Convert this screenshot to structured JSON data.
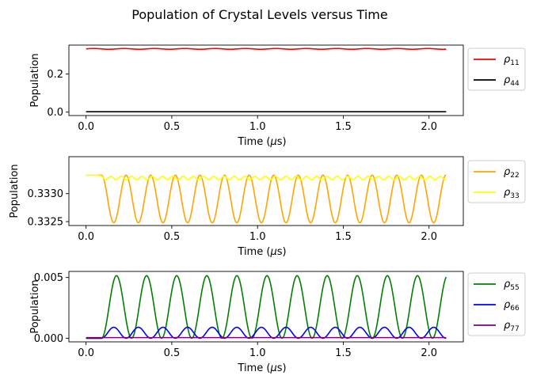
{
  "figure": {
    "title": "Population of Crystal Levels versus Time"
  },
  "chart_data": [
    {
      "type": "line",
      "xlabel_prefix": "Time (",
      "xlabel_mu": "μ",
      "xlabel_suffix": "s)",
      "ylabel": "Population",
      "xlim": [
        -0.1,
        2.2
      ],
      "ylim": [
        -0.018,
        0.352
      ],
      "xticks": [
        0.0,
        0.5,
        1.0,
        1.5,
        2.0
      ],
      "xticklabels": [
        "0.0",
        "0.5",
        "1.0",
        "1.5",
        "2.0"
      ],
      "yticks": [
        0.0,
        0.2
      ],
      "yticklabels": [
        "0.0",
        "0.2"
      ],
      "legend_location": "outside-right",
      "series": [
        {
          "name_base": "ρ",
          "name_sub": "11",
          "color": "#ff0000",
          "model": {
            "kind": "osc",
            "base": 0.3322,
            "amp": 0.002,
            "period": 0.177,
            "phase": 0.0,
            "onset": 0.0,
            "rectify": false
          }
        },
        {
          "name_base": "ρ",
          "name_sub": "44",
          "color": "#000000",
          "model": {
            "kind": "const",
            "value": 0.002
          }
        }
      ]
    },
    {
      "type": "line",
      "xlabel_prefix": "Time (",
      "xlabel_mu": "μ",
      "xlabel_suffix": "s)",
      "ylabel": "Population",
      "xlim": [
        -0.1,
        2.2
      ],
      "ylim": [
        0.33243,
        0.33366
      ],
      "xticks": [
        0.0,
        0.5,
        1.0,
        1.5,
        2.0
      ],
      "xticklabels": [
        "0.0",
        "0.5",
        "1.0",
        "1.5",
        "2.0"
      ],
      "yticks": [
        0.3325,
        0.333
      ],
      "yticklabels": [
        "0.3325",
        "0.3330"
      ],
      "legend_location": "outside-right",
      "series": [
        {
          "name_base": "ρ",
          "name_sub": "22",
          "color": "#ffa500",
          "model": {
            "kind": "dip",
            "top": 0.33333,
            "bottom": 0.33248,
            "period": 0.1435,
            "onset": 0.09
          }
        },
        {
          "name_base": "ρ",
          "name_sub": "33",
          "color": "#ffff00",
          "model": {
            "kind": "jitter",
            "top": 0.33333,
            "mean": 0.33328,
            "amp": 3e-05,
            "period": 0.06,
            "onset": 0.07
          }
        }
      ]
    },
    {
      "type": "line",
      "xlabel_prefix": "Time (",
      "xlabel_mu": "μ",
      "xlabel_suffix": "s)",
      "ylabel": "Population",
      "xlim": [
        -0.1,
        2.2
      ],
      "ylim": [
        -0.0003,
        0.0055
      ],
      "xticks": [
        0.0,
        0.5,
        1.0,
        1.5,
        2.0
      ],
      "xticklabels": [
        "0.0",
        "0.5",
        "1.0",
        "1.5",
        "2.0"
      ],
      "yticks": [
        0.0,
        0.005
      ],
      "yticklabels": [
        "0.000",
        "0.005"
      ],
      "legend_location": "outside-right",
      "series": [
        {
          "name_base": "ρ",
          "name_sub": "55",
          "color": "#008000",
          "model": {
            "kind": "peaks",
            "amp": 0.00515,
            "period": 0.1755,
            "onset": 0.09
          }
        },
        {
          "name_base": "ρ",
          "name_sub": "66",
          "color": "#0000ff",
          "model": {
            "kind": "peaks",
            "amp": 0.0009,
            "period": 0.1435,
            "onset": 0.09
          }
        },
        {
          "name_base": "ρ",
          "name_sub": "77",
          "color": "#800080",
          "model": {
            "kind": "const",
            "value": 5e-05
          }
        }
      ]
    }
  ]
}
